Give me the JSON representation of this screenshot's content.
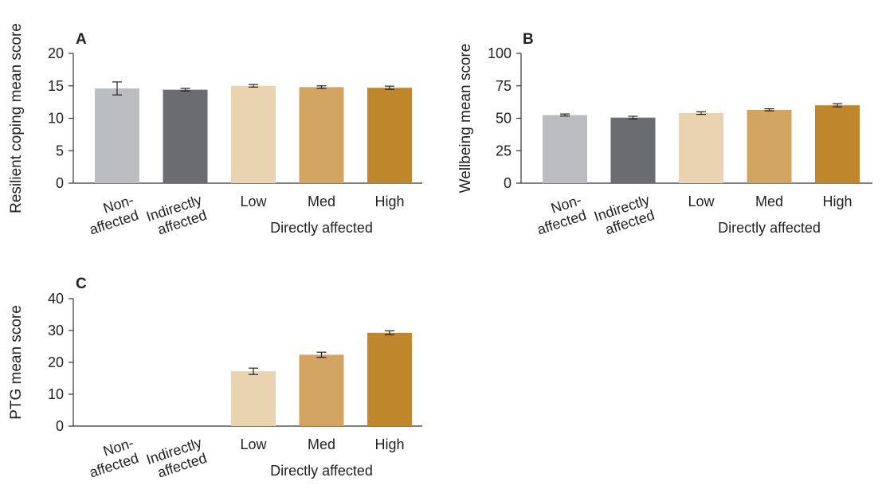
{
  "figure": {
    "group_label": "Directly affected"
  },
  "colors": {
    "non_affected": "#bcbdc1",
    "indirectly_affected": "#6b6c70",
    "low": "#ead3b0",
    "med": "#d1a461",
    "high": "#bf862b"
  },
  "chart_data": [
    {
      "type": "bar",
      "panel": "A",
      "ylabel": "Resilient coping mean score",
      "ylim": [
        0,
        20
      ],
      "yticks": [
        0,
        5,
        10,
        15,
        20
      ],
      "categories": [
        "Non-affected",
        "Indirectly affected",
        "Low",
        "Med",
        "High"
      ],
      "category_lines": [
        [
          "Non-",
          "affected"
        ],
        [
          "Indirectly",
          "affected"
        ],
        [
          "Low"
        ],
        [
          "Med"
        ],
        [
          "High"
        ]
      ],
      "values": [
        14.6,
        14.4,
        15.0,
        14.8,
        14.7
      ],
      "errors": [
        1.0,
        0.2,
        0.2,
        0.2,
        0.25
      ],
      "group_label": "Directly affected",
      "grid": false
    },
    {
      "type": "bar",
      "panel": "B",
      "ylabel": "Wellbeing mean score",
      "ylim": [
        0,
        100
      ],
      "yticks": [
        0,
        25,
        50,
        75,
        100
      ],
      "categories": [
        "Non-affected",
        "Indirectly affected",
        "Low",
        "Med",
        "High"
      ],
      "category_lines": [
        [
          "Non-",
          "affected"
        ],
        [
          "Indirectly",
          "affected"
        ],
        [
          "Low"
        ],
        [
          "Med"
        ],
        [
          "High"
        ]
      ],
      "values": [
        52.5,
        50.5,
        54.0,
        56.5,
        60.0
      ],
      "errors": [
        0.8,
        1.0,
        1.0,
        0.8,
        1.2
      ],
      "group_label": "Directly affected",
      "grid": false
    },
    {
      "type": "bar",
      "panel": "C",
      "ylabel": "PTG mean score",
      "ylim": [
        0,
        40
      ],
      "yticks": [
        0,
        10,
        20,
        30,
        40
      ],
      "categories": [
        "Non-affected",
        "Indirectly affected",
        "Low",
        "Med",
        "High"
      ],
      "category_lines": [
        [
          "Non-",
          "affected"
        ],
        [
          "Indirectly",
          "affected"
        ],
        [
          "Low"
        ],
        [
          "Med"
        ],
        [
          "High"
        ]
      ],
      "values": [
        null,
        null,
        17.2,
        22.4,
        29.3
      ],
      "errors": [
        null,
        null,
        1.0,
        0.8,
        0.6
      ],
      "group_label": "Directly affected",
      "grid": false
    }
  ]
}
